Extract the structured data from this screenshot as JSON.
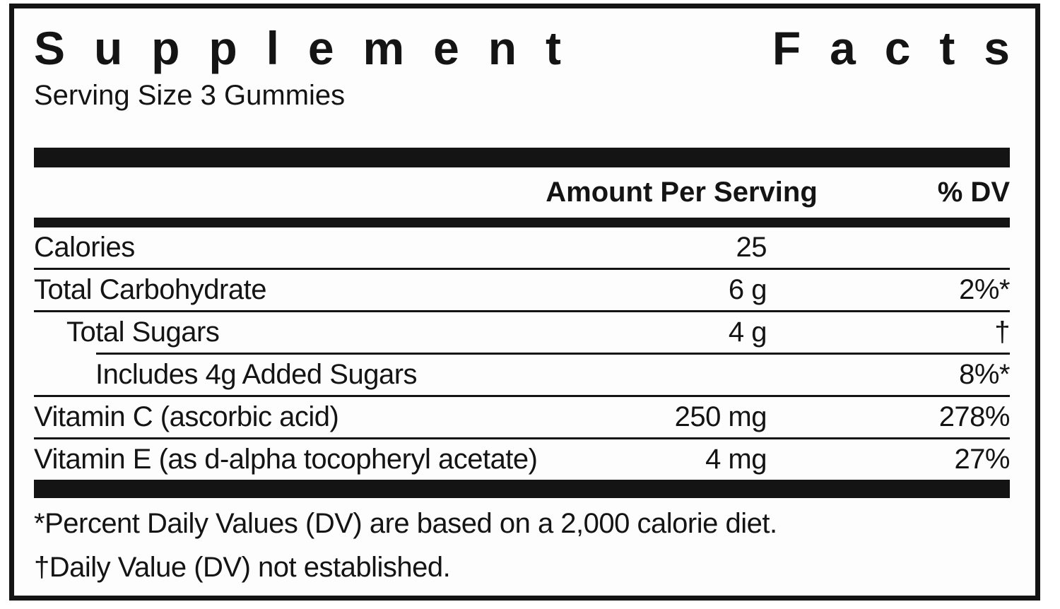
{
  "panel": {
    "title_left": "Supplement",
    "title_right": "Facts",
    "serving_size": "Serving Size 3 Gummies",
    "columns": {
      "amount": "Amount Per Serving",
      "dv": "% DV"
    },
    "rows": [
      {
        "name": "Calories",
        "amount": "25",
        "dv": ""
      },
      {
        "name": "Total Carbohydrate",
        "amount": "6 g",
        "dv": "2%*"
      },
      {
        "name": "Total Sugars",
        "amount": "4 g",
        "dv": "†"
      },
      {
        "name": "Includes 4g Added Sugars",
        "amount": "",
        "dv": "8%*"
      },
      {
        "name": "Vitamin C (ascorbic acid)",
        "amount": "250 mg",
        "dv": "278%"
      },
      {
        "name": "Vitamin E (as d-alpha tocopheryl acetate)",
        "amount": "4 mg",
        "dv": "27%"
      }
    ],
    "footnotes": [
      "*Percent Daily Values (DV) are based on a 2,000 calorie diet.",
      "†Daily Value (DV) not established."
    ],
    "colors": {
      "ink": "#141414",
      "background": "#fdfdfd"
    }
  }
}
